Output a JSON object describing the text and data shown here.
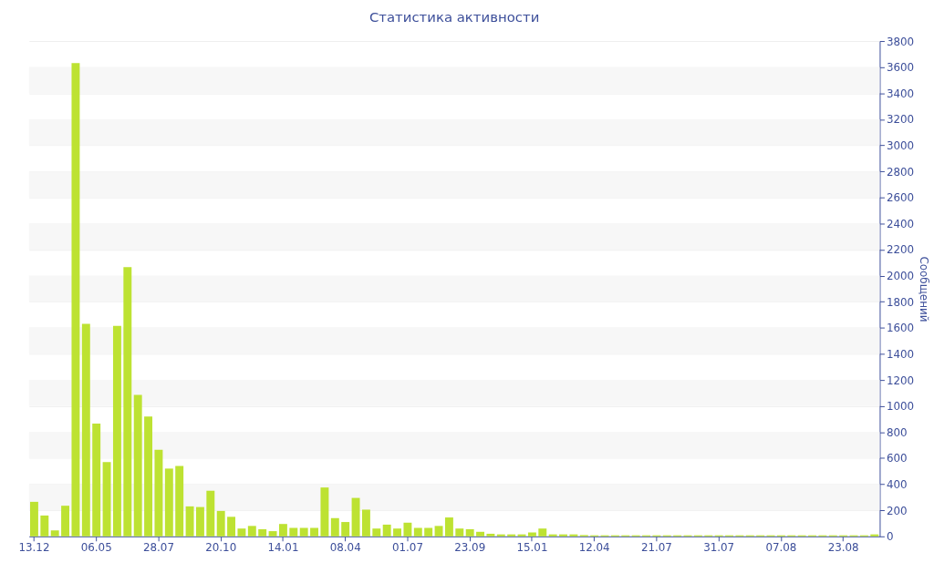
{
  "chart_data": {
    "type": "bar",
    "title": "Статистика активности",
    "ylabel": "Сообщений",
    "color": "#bde232",
    "categories": [
      "13.12",
      null,
      null,
      null,
      null,
      null,
      "06.05",
      null,
      null,
      null,
      null,
      null,
      "28.07",
      null,
      null,
      null,
      null,
      null,
      "20.10",
      null,
      null,
      null,
      null,
      null,
      "14.01",
      null,
      null,
      null,
      null,
      null,
      "08.04",
      null,
      null,
      null,
      null,
      null,
      "01.07",
      null,
      null,
      null,
      null,
      null,
      "23.09",
      null,
      null,
      null,
      null,
      null,
      "15.01",
      null,
      null,
      null,
      null,
      null,
      "12.04",
      null,
      null,
      null,
      null,
      null,
      "21.07",
      null,
      null,
      null,
      null,
      null,
      "31.07",
      null,
      null,
      null,
      null,
      null,
      "07.08",
      null,
      null,
      null,
      null,
      null,
      "23.08",
      null,
      null,
      null
    ],
    "values": [
      265,
      160,
      45,
      235,
      3630,
      1630,
      865,
      570,
      1615,
      2065,
      1085,
      920,
      665,
      520,
      540,
      230,
      225,
      350,
      195,
      150,
      60,
      80,
      55,
      40,
      95,
      65,
      65,
      65,
      375,
      140,
      110,
      295,
      205,
      60,
      90,
      60,
      105,
      65,
      65,
      80,
      145,
      60,
      55,
      35,
      20,
      15,
      15,
      15,
      30,
      60,
      15,
      15,
      15,
      10,
      8,
      8,
      8,
      8,
      8,
      8,
      8,
      8,
      8,
      8,
      8,
      8,
      8,
      8,
      8,
      8,
      8,
      8,
      8,
      8,
      8,
      8,
      8,
      8,
      8,
      8,
      8,
      15
    ],
    "ylim": [
      0,
      3800
    ],
    "yticks": [
      0,
      200,
      400,
      600,
      800,
      1000,
      1200,
      1400,
      1600,
      1800,
      2000,
      2200,
      2400,
      2600,
      2800,
      3000,
      3200,
      3400,
      3600,
      3800
    ],
    "grid": "y"
  }
}
